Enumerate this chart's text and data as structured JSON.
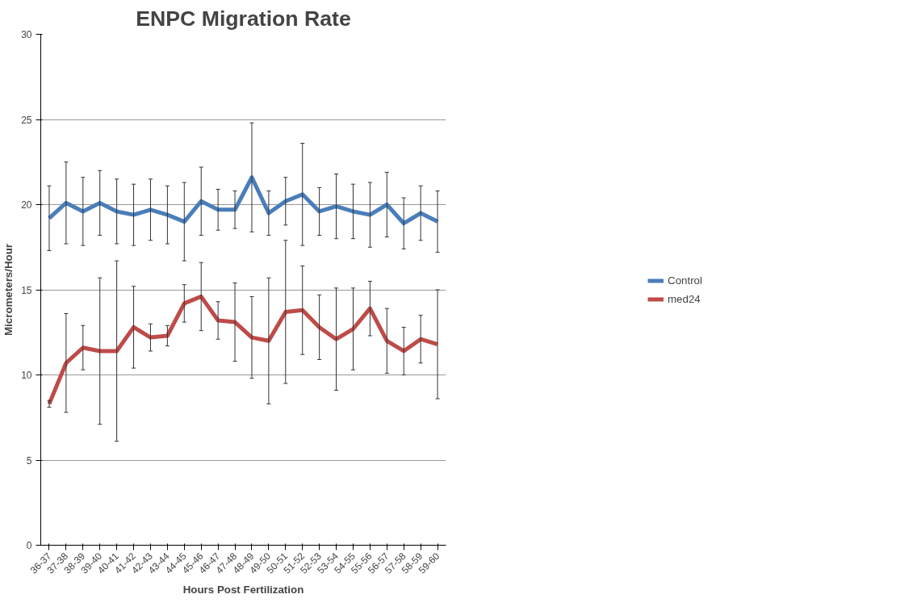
{
  "chart_data": {
    "type": "line",
    "title": "ENPC Migration Rate",
    "xlabel": "Hours Post Fertilization",
    "ylabel": "Micrometers/Hour",
    "categories": [
      "36-37",
      "37-38",
      "38-39",
      "39-40",
      "40-41",
      "41-42",
      "42-43",
      "43-44",
      "44-45",
      "45-46",
      "46-47",
      "47-48",
      "48-49",
      "49-50",
      "50-51",
      "51-52",
      "52-53",
      "53-54",
      "54-55",
      "55-56",
      "56-57",
      "57-58",
      "58-59",
      "59-60"
    ],
    "series": [
      {
        "name": "Control",
        "color": "#4a7ebb",
        "values": [
          19.2,
          20.1,
          19.6,
          20.1,
          19.6,
          19.4,
          19.7,
          19.4,
          19.0,
          20.2,
          19.7,
          19.7,
          21.6,
          19.5,
          20.2,
          20.6,
          19.6,
          19.9,
          19.6,
          19.4,
          20.0,
          18.9,
          19.5,
          19.0
        ],
        "errors": [
          1.9,
          2.4,
          2.0,
          1.9,
          1.9,
          1.8,
          1.8,
          1.7,
          2.3,
          2.0,
          1.2,
          1.1,
          3.2,
          1.3,
          1.4,
          3.0,
          1.4,
          1.9,
          1.6,
          1.9,
          1.9,
          1.5,
          1.6,
          1.8
        ]
      },
      {
        "name": "med24",
        "color": "#be4b48",
        "values": [
          8.3,
          10.7,
          11.6,
          11.4,
          11.4,
          12.8,
          12.2,
          12.3,
          14.2,
          14.6,
          13.2,
          13.1,
          12.2,
          12.0,
          13.7,
          13.8,
          12.8,
          12.1,
          12.7,
          13.9,
          12.0,
          11.4,
          12.1,
          11.8
        ],
        "errors": [
          0.2,
          2.9,
          1.3,
          4.3,
          5.3,
          2.4,
          0.8,
          0.6,
          1.1,
          2.0,
          1.1,
          2.3,
          2.4,
          3.7,
          4.2,
          2.6,
          1.9,
          3.0,
          2.4,
          1.6,
          1.9,
          1.4,
          1.4,
          3.2
        ]
      }
    ],
    "ylim": [
      0,
      30
    ],
    "yticks": [
      0,
      5,
      10,
      15,
      20,
      25,
      30
    ],
    "grid": "y",
    "legend": "right",
    "marker": "none",
    "line_style": "solid"
  }
}
